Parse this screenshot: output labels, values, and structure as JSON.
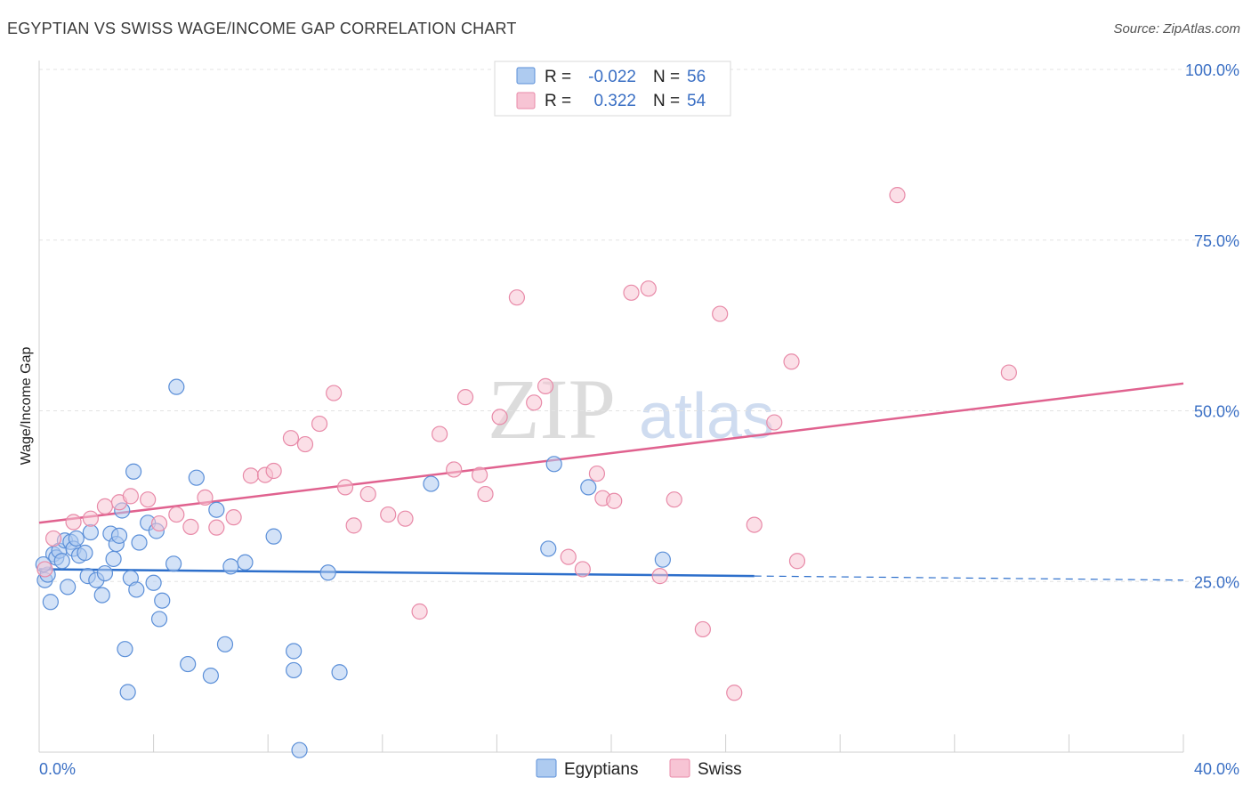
{
  "title": "EGYPTIAN VS SWISS WAGE/INCOME GAP CORRELATION CHART",
  "source": "Source: ZipAtlas.com",
  "watermark": {
    "zip": "ZIP",
    "atlas": "atlas"
  },
  "colors": {
    "egyptians_fill": "#aecbf0",
    "egyptians_stroke": "#5b8fd8",
    "egyptians_line": "#2d6fcb",
    "swiss_fill": "#f7c4d4",
    "swiss_stroke": "#e88aa8",
    "swiss_line": "#e0628f",
    "tick_text": "#3a6fc4",
    "grid": "#e3e3e3"
  },
  "legend": {
    "rows": [
      {
        "r_label": "R =",
        "r_value": "-0.022",
        "n_label": "N =",
        "n_value": "56"
      },
      {
        "r_label": "R =",
        "r_value": " 0.322",
        "n_label": "N =",
        "n_value": "54"
      }
    ]
  },
  "chart_data": {
    "type": "scatter",
    "xlabel": "",
    "ylabel": "Wage/Income Gap",
    "xlim": [
      0,
      40
    ],
    "ylim": [
      0,
      100
    ],
    "x_tick_labels": [
      "0.0%",
      "40.0%"
    ],
    "y_tick_labels": [
      "25.0%",
      "50.0%",
      "75.0%",
      "100.0%"
    ],
    "y_ticks": [
      25,
      50,
      75,
      100
    ],
    "grid": true,
    "legend_position": "top-center",
    "series": [
      {
        "name": "Egyptians",
        "trend": {
          "x0": 0,
          "y0": 26.8,
          "x1": 25,
          "y1": 25.8,
          "dash_to_x": 40,
          "dash_to_y": 25.2
        },
        "points": [
          [
            0.2,
            25.2
          ],
          [
            0.3,
            26.0
          ],
          [
            0.4,
            22.0
          ],
          [
            0.5,
            29.0
          ],
          [
            0.6,
            28.5
          ],
          [
            0.7,
            29.5
          ],
          [
            0.8,
            28.0
          ],
          [
            0.9,
            31.0
          ],
          [
            1.0,
            24.2
          ],
          [
            1.1,
            30.8
          ],
          [
            1.2,
            29.8
          ],
          [
            1.3,
            31.3
          ],
          [
            1.4,
            28.8
          ],
          [
            1.6,
            29.2
          ],
          [
            1.7,
            25.8
          ],
          [
            1.8,
            32.2
          ],
          [
            2.0,
            25.2
          ],
          [
            2.2,
            23.0
          ],
          [
            2.3,
            26.2
          ],
          [
            2.5,
            32.0
          ],
          [
            2.6,
            28.3
          ],
          [
            2.7,
            30.5
          ],
          [
            2.8,
            31.7
          ],
          [
            2.9,
            35.4
          ],
          [
            3.0,
            15.1
          ],
          [
            3.1,
            8.8
          ],
          [
            3.2,
            25.5
          ],
          [
            3.3,
            41.1
          ],
          [
            3.4,
            23.8
          ],
          [
            3.5,
            30.7
          ],
          [
            3.8,
            33.6
          ],
          [
            4.0,
            24.8
          ],
          [
            4.1,
            32.4
          ],
          [
            4.2,
            19.5
          ],
          [
            4.3,
            22.2
          ],
          [
            4.7,
            27.6
          ],
          [
            4.8,
            53.5
          ],
          [
            5.2,
            12.9
          ],
          [
            5.5,
            40.2
          ],
          [
            6.0,
            11.2
          ],
          [
            6.2,
            35.5
          ],
          [
            6.5,
            15.8
          ],
          [
            6.7,
            27.2
          ],
          [
            7.2,
            27.8
          ],
          [
            8.2,
            31.6
          ],
          [
            8.9,
            14.8
          ],
          [
            8.9,
            12.0
          ],
          [
            9.1,
            0.3
          ],
          [
            10.1,
            26.3
          ],
          [
            10.5,
            11.7
          ],
          [
            13.7,
            39.3
          ],
          [
            17.8,
            29.8
          ],
          [
            18.0,
            42.2
          ],
          [
            19.2,
            38.8
          ],
          [
            21.8,
            28.2
          ],
          [
            0.15,
            27.5
          ]
        ]
      },
      {
        "name": "Swiss",
        "trend": {
          "x0": 0,
          "y0": 33.6,
          "x1": 40,
          "y1": 54.0
        },
        "points": [
          [
            0.2,
            26.8
          ],
          [
            0.5,
            31.3
          ],
          [
            1.2,
            33.7
          ],
          [
            1.8,
            34.2
          ],
          [
            2.3,
            36.0
          ],
          [
            2.8,
            36.6
          ],
          [
            3.2,
            37.5
          ],
          [
            3.8,
            37.0
          ],
          [
            4.2,
            33.5
          ],
          [
            4.8,
            34.8
          ],
          [
            5.3,
            33.0
          ],
          [
            5.8,
            37.3
          ],
          [
            6.2,
            32.9
          ],
          [
            6.8,
            34.4
          ],
          [
            7.4,
            40.5
          ],
          [
            7.9,
            40.6
          ],
          [
            8.2,
            41.2
          ],
          [
            8.8,
            46.0
          ],
          [
            9.3,
            45.1
          ],
          [
            9.8,
            48.1
          ],
          [
            10.3,
            52.6
          ],
          [
            10.7,
            38.8
          ],
          [
            11.0,
            33.2
          ],
          [
            11.5,
            37.8
          ],
          [
            12.2,
            34.8
          ],
          [
            12.8,
            34.2
          ],
          [
            13.3,
            20.6
          ],
          [
            14.0,
            46.6
          ],
          [
            14.5,
            41.4
          ],
          [
            14.9,
            52.0
          ],
          [
            15.4,
            40.6
          ],
          [
            15.6,
            37.8
          ],
          [
            16.1,
            49.1
          ],
          [
            16.7,
            66.6
          ],
          [
            17.3,
            51.2
          ],
          [
            17.7,
            53.6
          ],
          [
            18.5,
            28.6
          ],
          [
            19.0,
            26.8
          ],
          [
            19.5,
            40.8
          ],
          [
            19.7,
            37.2
          ],
          [
            20.1,
            36.8
          ],
          [
            20.7,
            67.3
          ],
          [
            21.3,
            67.9
          ],
          [
            21.7,
            25.8
          ],
          [
            22.2,
            37.0
          ],
          [
            23.2,
            18.0
          ],
          [
            23.8,
            64.2
          ],
          [
            24.3,
            8.7
          ],
          [
            25.0,
            33.3
          ],
          [
            25.7,
            48.3
          ],
          [
            26.3,
            57.2
          ],
          [
            26.5,
            28.0
          ],
          [
            30.0,
            81.6
          ],
          [
            33.9,
            55.6
          ]
        ]
      }
    ]
  },
  "bottom_legend": {
    "egyptians": "Egyptians",
    "swiss": "Swiss"
  }
}
